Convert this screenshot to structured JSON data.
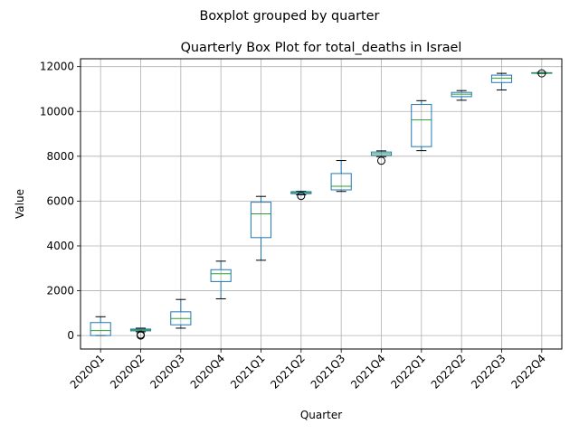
{
  "chart_data": {
    "type": "box",
    "suptitle": "Boxplot grouped by quarter",
    "title": "Quarterly Box Plot for total_deaths in Israel",
    "xlabel": "Quarter",
    "ylabel": "Value",
    "ylim": [
      -600,
      12350
    ],
    "yticks": [
      0,
      2000,
      4000,
      6000,
      8000,
      10000,
      12000
    ],
    "ytick_labels": [
      "0",
      "2000",
      "4000",
      "6000",
      "8000",
      "10000",
      "12000"
    ],
    "grid": true,
    "categories": [
      "2020Q1",
      "2020Q2",
      "2020Q3",
      "2020Q4",
      "2021Q1",
      "2021Q2",
      "2021Q3",
      "2021Q4",
      "2022Q1",
      "2022Q2",
      "2022Q3",
      "2022Q4"
    ],
    "boxes": [
      {
        "whislo": 0,
        "q1": 0,
        "med": 220,
        "q3": 580,
        "whishi": 840,
        "fliers": []
      },
      {
        "whislo": 170,
        "q1": 210,
        "med": 250,
        "q3": 290,
        "whishi": 330,
        "fliers": [
          0,
          40
        ]
      },
      {
        "whislo": 330,
        "q1": 480,
        "med": 760,
        "q3": 1060,
        "whishi": 1610,
        "fliers": []
      },
      {
        "whislo": 1640,
        "q1": 2410,
        "med": 2760,
        "q3": 2940,
        "whishi": 3320,
        "fliers": []
      },
      {
        "whislo": 3360,
        "q1": 4370,
        "med": 5430,
        "q3": 5950,
        "whishi": 6210,
        "fliers": []
      },
      {
        "whislo": 6280,
        "q1": 6330,
        "med": 6380,
        "q3": 6420,
        "whishi": 6440,
        "fliers": [
          6230
        ]
      },
      {
        "whislo": 6430,
        "q1": 6500,
        "med": 6660,
        "q3": 7230,
        "whishi": 7810,
        "fliers": []
      },
      {
        "whislo": 7980,
        "q1": 8040,
        "med": 8120,
        "q3": 8190,
        "whishi": 8240,
        "fliers": [
          7800
        ]
      },
      {
        "whislo": 8250,
        "q1": 8430,
        "med": 9620,
        "q3": 10310,
        "whishi": 10480,
        "fliers": []
      },
      {
        "whislo": 10500,
        "q1": 10660,
        "med": 10770,
        "q3": 10850,
        "whishi": 10930,
        "fliers": []
      },
      {
        "whislo": 10960,
        "q1": 11290,
        "med": 11490,
        "q3": 11620,
        "whishi": 11700,
        "fliers": []
      },
      {
        "whislo": 11690,
        "q1": 11700,
        "med": 11720,
        "q3": 11730,
        "whishi": 11740,
        "fliers": [
          11700
        ]
      }
    ],
    "colors": {
      "box": "#1f77b4",
      "median": "#2ca02c",
      "whisker": "#000000",
      "grid": "#b0b0b0",
      "axes": "#000000"
    }
  }
}
